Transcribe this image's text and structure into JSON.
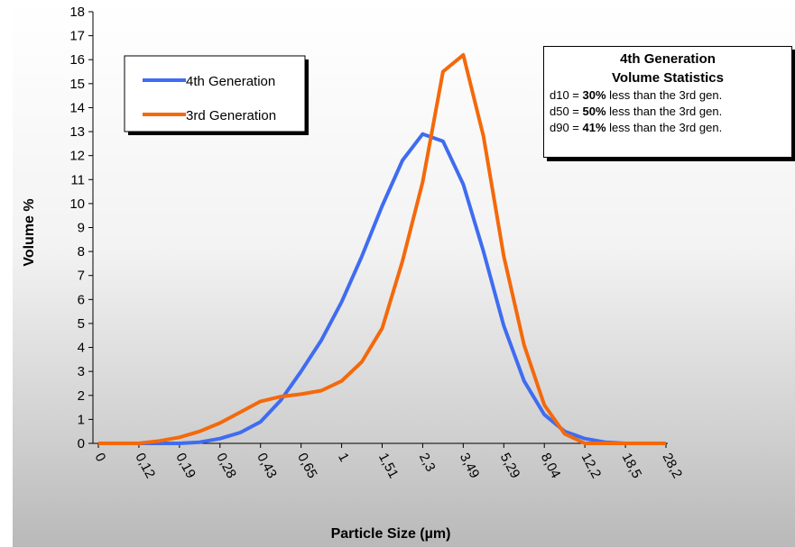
{
  "chart_data": {
    "type": "line",
    "xlabel": "Particle Size (µm)",
    "ylabel": "Volume %",
    "ylim": [
      0,
      18
    ],
    "yticks": [
      0,
      1,
      2,
      3,
      4,
      5,
      6,
      7,
      8,
      9,
      10,
      11,
      12,
      13,
      14,
      15,
      16,
      17,
      18
    ],
    "x_tick_labels": [
      "0",
      "0,12",
      "0,19",
      "0,28",
      "0,43",
      "0,65",
      "1",
      "1,51",
      "2,3",
      "3,49",
      "5,29",
      "8,04",
      "12,2",
      "18,5",
      "28,2"
    ],
    "grid": false,
    "legend_position": "top-left",
    "series": [
      {
        "name": "4th Generation",
        "color": "#3f6cf0",
        "x": [
          0,
          0.5,
          1,
          1.5,
          2,
          2.5,
          3,
          3.5,
          4,
          4.5,
          5,
          5.5,
          6,
          6.5,
          7,
          7.5,
          8,
          8.5,
          9,
          9.5,
          10,
          10.5,
          11,
          11.5,
          12,
          12.5,
          13,
          13.5,
          14
        ],
        "values": [
          0,
          0,
          0,
          0,
          0,
          0.05,
          0.2,
          0.45,
          0.9,
          1.8,
          3.0,
          4.3,
          5.9,
          7.8,
          9.9,
          11.8,
          12.9,
          12.6,
          10.8,
          8.0,
          4.9,
          2.6,
          1.2,
          0.5,
          0.2,
          0.05,
          0,
          0,
          0
        ]
      },
      {
        "name": "3rd Generation",
        "color": "#f4690b",
        "x": [
          0,
          0.5,
          1,
          1.5,
          2,
          2.5,
          3,
          3.5,
          4,
          4.5,
          5,
          5.5,
          6,
          6.5,
          7,
          7.5,
          8,
          8.5,
          9,
          9.5,
          10,
          10.5,
          11,
          11.5,
          12,
          12.5,
          13,
          13.5,
          14
        ],
        "values": [
          0,
          0,
          0,
          0.1,
          0.25,
          0.5,
          0.85,
          1.3,
          1.75,
          1.95,
          2.05,
          2.2,
          2.6,
          3.4,
          4.8,
          7.6,
          10.9,
          15.5,
          16.2,
          12.8,
          7.8,
          4.1,
          1.6,
          0.4,
          0,
          0,
          0,
          0,
          0
        ]
      }
    ]
  },
  "stats_box": {
    "title_line1": "4th Generation",
    "title_line2": "Volume Statistics",
    "rows": [
      {
        "label": "d10 = ",
        "value": "30%",
        "text": " less than the 3rd gen."
      },
      {
        "label": "d50 = ",
        "value": "50%",
        "text": " less than the 3rd gen."
      },
      {
        "label": "d90 = ",
        "value": "41%",
        "text": " less than the 3rd gen."
      }
    ]
  }
}
